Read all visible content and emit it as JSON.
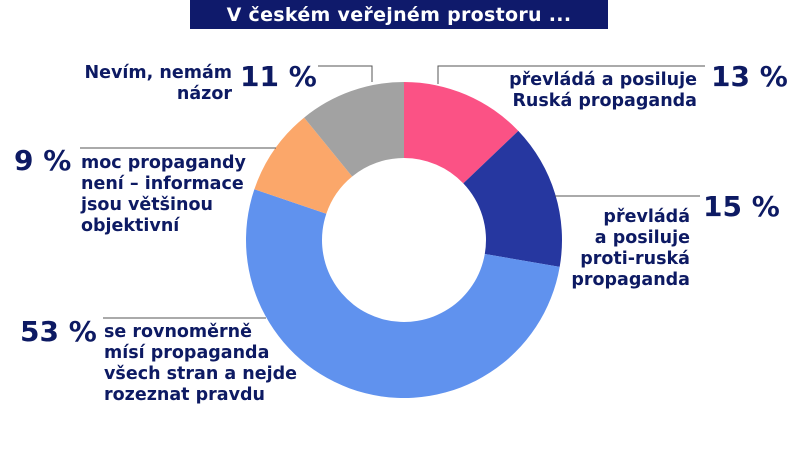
{
  "title": "V českém veřejném prostoru ...",
  "chart_data": {
    "type": "pie",
    "variant": "donut",
    "title": "V českém veřejném prostoru ...",
    "start_angle_deg": 0,
    "direction": "clockwise",
    "categories": [
      "převládá a posiluje Ruská propaganda",
      "převládá a posiluje proti-ruská propaganda",
      "se rovnoměrně mísí propaganda všech stran a nejde rozeznat pravdu",
      "moc propagandy není – informace jsou většinou objektivní",
      "Nevím, nemám názor"
    ],
    "values": [
      13,
      15,
      53,
      9,
      11
    ],
    "unit": "%",
    "colors": [
      "#fb5285",
      "#2637a0",
      "#6092ee",
      "#fba76a",
      "#a2a2a2"
    ]
  },
  "labels": {
    "russian": {
      "text_lines": [
        "převládá a posiluje",
        "Ruská propaganda"
      ],
      "pct": "13 %"
    },
    "anti_russian": {
      "text_lines": [
        "převládá",
        "a posiluje",
        "proti-ruská",
        "propaganda"
      ],
      "pct": "15 %"
    },
    "mixed": {
      "text_lines": [
        "se rovnoměrně",
        "mísí propaganda",
        "všech stran a nejde",
        "rozeznat pravdu"
      ],
      "pct": "53 %"
    },
    "objective": {
      "text_lines": [
        "moc propagandy",
        "není – informace",
        "jsou většinou",
        "objektivní"
      ],
      "pct": "9 %"
    },
    "dont_know": {
      "text_lines": [
        "Nevím, nemám",
        "názor"
      ],
      "pct": "11 %"
    }
  },
  "colors": {
    "title_bg": "#0f1a6b",
    "text": "#0d1a63",
    "leader_line": "#555555"
  }
}
